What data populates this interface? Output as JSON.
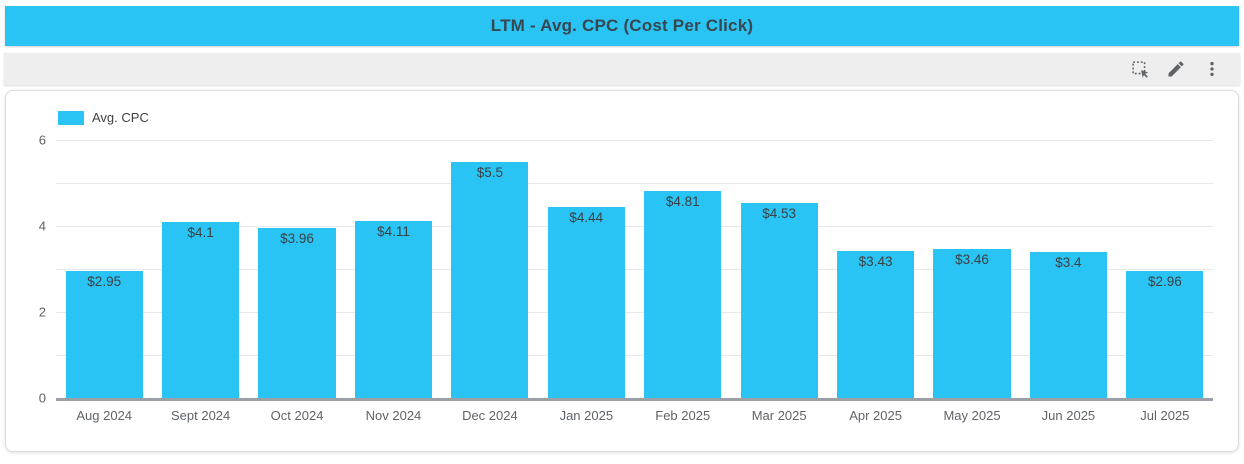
{
  "header": {
    "title": "LTM - Avg. CPC (Cost Per Click)"
  },
  "toolbar": {
    "icons": [
      "marquee-select-icon",
      "edit-pencil-icon",
      "more-vert-icon"
    ]
  },
  "legend": {
    "label": "Avg. CPC"
  },
  "colors": {
    "accent_cyan": "#29C4F4",
    "title_text": "#37474F",
    "axis_text": "#616161",
    "bar_label_text": "#3C4043",
    "gridline": "#E7E8EA",
    "baseline": "#9AA0A6",
    "toolbar_bg": "#EEEEEE",
    "icon_gray": "#5F6368"
  },
  "chart_data": {
    "type": "bar",
    "title": "LTM - Avg. CPC (Cost Per Click)",
    "series_name": "Avg. CPC",
    "categories": [
      "Aug 2024",
      "Sept 2024",
      "Oct 2024",
      "Nov 2024",
      "Dec 2024",
      "Jan 2025",
      "Feb 2025",
      "Mar 2025",
      "Apr 2025",
      "May 2025",
      "Jun 2025",
      "Jul 2025"
    ],
    "values": [
      2.95,
      4.1,
      3.96,
      4.11,
      5.5,
      4.44,
      4.81,
      4.53,
      3.43,
      3.46,
      3.4,
      2.96
    ],
    "value_labels": [
      "$2.95",
      "$4.1",
      "$3.96",
      "$4.11",
      "$5.5",
      "$4.44",
      "$4.81",
      "$4.53",
      "$3.43",
      "$3.46",
      "$3.4",
      "$2.96"
    ],
    "xlabel": "",
    "ylabel": "",
    "ylim": [
      0,
      6
    ],
    "yticks": [
      0,
      2,
      4,
      6
    ],
    "gridline_step": 1,
    "grid": true,
    "legend_position": "top-left",
    "bar_color": "#29C4F4"
  }
}
